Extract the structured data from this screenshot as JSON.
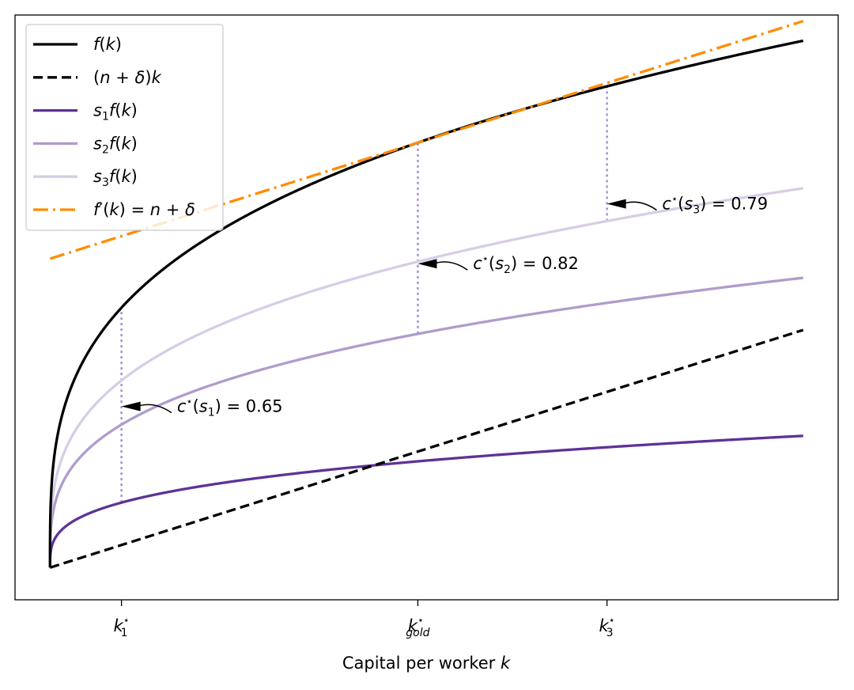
{
  "chart_data": {
    "type": "line",
    "title": "",
    "xlabel": "Capital per worker k",
    "ylabel": "",
    "xlim": [
      -0.4,
      9.0
    ],
    "ylim": [
      -0.35,
      6.0
    ],
    "grid": false,
    "legend_position": "top-left",
    "y_ticks_shown": false,
    "params": {
      "alpha": 0.3,
      "n_plus_delta": 0.3,
      "k_gold": 4.2
    },
    "x_ticks": [
      {
        "x": 0.8155,
        "main": "k",
        "sub": "1",
        "sup": "⋆"
      },
      {
        "x": 4.2,
        "main": "k",
        "sub": "gold",
        "sup": "⋆"
      },
      {
        "x": 6.36,
        "main": "k",
        "sub": "3",
        "sup": "⋆"
      }
    ],
    "series": [
      {
        "name": "f(k)",
        "legend": {
          "main": "f(k)"
        },
        "kind": "f",
        "color": "#000000",
        "dash": "solid",
        "width": 3.3
      },
      {
        "name": "(n + δ)k",
        "legend": {
          "main": "(n + δ)k"
        },
        "kind": "depreciation",
        "color": "#000000",
        "dash": "dashed",
        "width": 3.3
      },
      {
        "name": "s₁f(k)",
        "legend": {
          "main": "s",
          "sub": "1",
          "tail": "f(k)"
        },
        "kind": "savings",
        "s": 0.25,
        "color": "#5e3296",
        "dash": "solid",
        "width": 3.3
      },
      {
        "name": "s₂f(k)",
        "legend": {
          "main": "s",
          "sub": "2",
          "tail": "f(k)"
        },
        "kind": "savings",
        "s": 0.55,
        "color": "#b09ccc",
        "dash": "solid",
        "width": 3.3
      },
      {
        "name": "s₃f(k)",
        "legend": {
          "main": "s",
          "sub": "3",
          "tail": "f(k)"
        },
        "kind": "savings",
        "s": 0.72,
        "color": "#d7cde6",
        "dash": "solid",
        "width": 3.3
      },
      {
        "name": "f′(k) = n + δ",
        "legend": {
          "main": "f′(k) = n + δ"
        },
        "kind": "tangent",
        "color": "#ff8c00",
        "dash": "dashdot",
        "width": 3.3
      }
    ],
    "vertical_markers": [
      {
        "x": 0.8155,
        "s": 0.25
      },
      {
        "x": 4.2,
        "s": 0.55
      },
      {
        "x": 6.36,
        "s": 0.72
      }
    ],
    "marker_color": "#a98fd1",
    "annotations": [
      {
        "label": "c⋆(s₁) = 0.65",
        "main": "c",
        "sup": "⋆",
        "open": "(s",
        "sub": "1",
        "close": ") = 0.65",
        "value": 0.65,
        "x": 0.8155,
        "y": 1.75,
        "text_x": 1.45
      },
      {
        "label": "c⋆(s₂) = 0.82",
        "main": "c",
        "sup": "⋆",
        "open": "(s",
        "sub": "2",
        "close": ") = 0.82",
        "value": 0.82,
        "x": 4.2,
        "y": 3.3,
        "text_x": 4.83
      },
      {
        "label": "c⋆(s₃) = 0.79",
        "main": "c",
        "sup": "⋆",
        "open": "(s",
        "sub": "3",
        "close": ") = 0.79",
        "value": 0.79,
        "x": 6.36,
        "y": 3.95,
        "text_x": 6.99
      }
    ]
  }
}
